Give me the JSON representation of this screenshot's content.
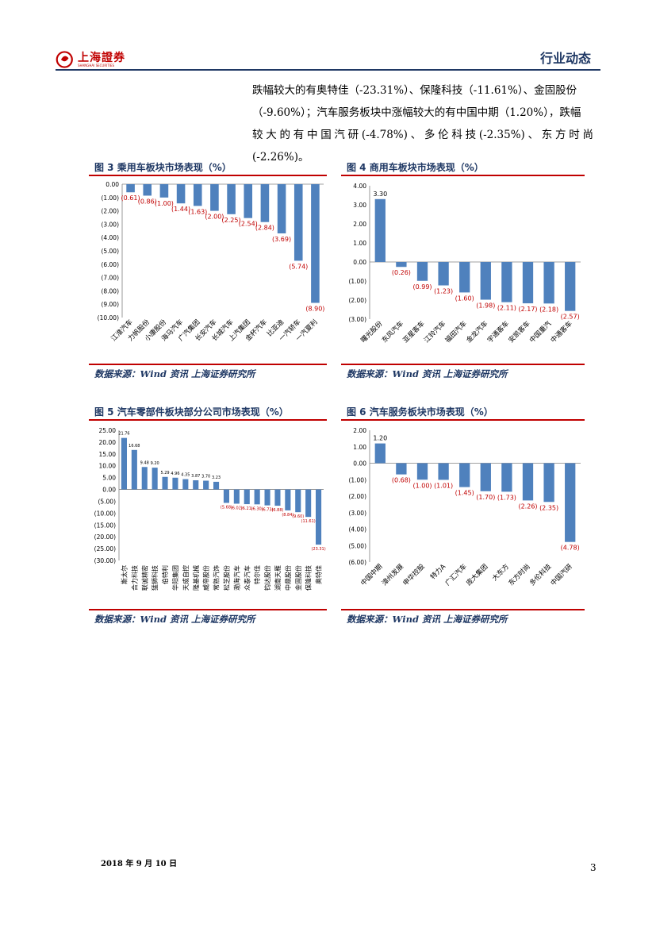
{
  "header": {
    "logo_text": "上海證券",
    "logo_sub": "SHANGHAI SECURITIES",
    "section_title": "行业动态"
  },
  "paragraph": {
    "line1": "跌幅较大的有奥特佳（-23.31%）、保隆科技（-11.61%）、金固股份",
    "line2": "（-9.60%）；汽车服务板块中涨幅较大的有中国中期（1.20%），跌幅",
    "line3": "较大的有中国汽研(-4.78%)、多伦科技(-2.35%)、东方时尚(-2.26%)。"
  },
  "figures": {
    "fig3_title": "图 3 乘用车板块市场表现（%）",
    "fig4_title": "图 4 商用车板块市场表现（%）",
    "fig5_title": "图 5 汽车零部件板块部分公司市场表现（%）",
    "fig6_title": "图 6 汽车服务板块市场表现（%）",
    "source_label": "数据来源：Wind 资讯 上海证券研究所"
  },
  "chart_data": [
    {
      "id": "fig3",
      "type": "bar",
      "title": "图 3 乘用车板块市场表现（%）",
      "categories": [
        "江淮汽车",
        "力帆股份",
        "小康股份",
        "海马汽车",
        "广汽集团",
        "长安汽车",
        "长城汽车",
        "上汽集团",
        "金杯汽车",
        "比亚迪",
        "一汽轿车",
        "一汽夏利"
      ],
      "values": [
        -0.61,
        -0.86,
        -1.0,
        -1.44,
        -1.63,
        -2.0,
        -2.25,
        -2.54,
        -2.84,
        -3.69,
        -5.74,
        -8.9
      ],
      "labels": [
        "(0.61)",
        "(0.86)",
        "(1.00)",
        "(1.44)",
        "(1.63)",
        "(2.00)",
        "(2.25)",
        "(2.54)",
        "(2.84)",
        "(3.69)",
        "(5.74)",
        "(8.90)"
      ],
      "ylim": [
        -10,
        0
      ],
      "yticks": [
        "0.00",
        "(1.00)",
        "(2.00)",
        "(3.00)",
        "(4.00)",
        "(5.00)",
        "(6.00)",
        "(7.00)",
        "(8.00)",
        "(9.00)",
        "(10.00)"
      ],
      "bar_color": "#4f81bd",
      "label_color": "#c00000"
    },
    {
      "id": "fig4",
      "type": "bar",
      "title": "图 4 商用车板块市场表现（%）",
      "categories": [
        "曙光股份",
        "东风汽车",
        "亚星客车",
        "江铃汽车",
        "福田汽车",
        "金龙汽车",
        "宇通客车",
        "安凯客车",
        "中国重汽",
        "中通客车"
      ],
      "values": [
        3.3,
        -0.26,
        -0.99,
        -1.23,
        -1.6,
        -1.98,
        -2.11,
        -2.17,
        -2.18,
        -2.57
      ],
      "labels": [
        "3.30",
        "(0.26)",
        "(0.99)",
        "(1.23)",
        "(1.60)",
        "(1.98)",
        "(2.11)",
        "(2.17)",
        "(2.18)",
        "(2.57)"
      ],
      "ylim": [
        -3,
        4
      ],
      "yticks": [
        "4.00",
        "3.00",
        "2.00",
        "1.00",
        "0.00",
        "(1.00)",
        "(2.00)",
        "(3.00)"
      ],
      "bar_color": "#4f81bd",
      "label_color": "#c00000"
    },
    {
      "id": "fig5",
      "type": "bar",
      "title": "图 5 汽车零部件板块部分公司市场表现（%）",
      "categories": [
        "斯太尔",
        "合力科技",
        "联诚精密",
        "猛狮科技",
        "伯特利",
        "华阳集团",
        "天成自控",
        "隆基机械",
        "威帝股份",
        "常熟汽饰",
        "松芝股份",
        "渤海汽车",
        "众泰汽车",
        "特尔佳",
        "钧达股份",
        "湖南天雁",
        "中鼎股份",
        "金固股份",
        "保隆科技",
        "奥特佳"
      ],
      "values": [
        21.76,
        16.68,
        9.48,
        9.2,
        5.29,
        4.96,
        4.35,
        3.87,
        3.7,
        3.23,
        -5.68,
        -6.02,
        -6.21,
        -6.3,
        -6.73,
        -6.88,
        -8.84,
        -9.6,
        -11.61,
        -23.31
      ],
      "labels": [
        "21.76",
        "16.68",
        "9.48",
        "9.20",
        "5.29",
        "4.96",
        "4.35",
        "3.87",
        "3.70",
        "3.23",
        "(5.68)",
        "(6.02)",
        "(6.21)",
        "(6.30)",
        "(6.73)",
        "(6.88)",
        "(8.84)",
        "(9.60)",
        "(11.61)",
        "(23.31)"
      ],
      "ylim": [
        -30,
        25
      ],
      "yticks": [
        "25.00",
        "20.00",
        "15.00",
        "10.00",
        "5.00",
        "0.00",
        "(5.00)",
        "(10.00)",
        "(15.00)",
        "(20.00)",
        "(25.00)",
        "(30.00)"
      ],
      "bar_color": "#4f81bd",
      "label_color": "#c00000"
    },
    {
      "id": "fig6",
      "type": "bar",
      "title": "图 6 汽车服务板块市场表现（%）",
      "categories": [
        "中国中期",
        "漳州发展",
        "申华控股",
        "特力A",
        "广汇汽车",
        "庞大集团",
        "大东方",
        "东方时尚",
        "多伦科技",
        "中国汽研"
      ],
      "values": [
        1.2,
        -0.68,
        -1.0,
        -1.01,
        -1.45,
        -1.7,
        -1.73,
        -2.26,
        -2.35,
        -4.78
      ],
      "labels": [
        "1.20",
        "(0.68)",
        "(1.00)",
        "(1.01)",
        "(1.45)",
        "(1.70)",
        "(1.73)",
        "(2.26)",
        "(2.35)",
        "(4.78)"
      ],
      "ylim": [
        -6,
        2
      ],
      "yticks": [
        "2.00",
        "1.00",
        "0.00",
        "(1.00)",
        "(2.00)",
        "(3.00)",
        "(4.00)",
        "(5.00)",
        "(6.00)"
      ],
      "bar_color": "#4f81bd",
      "label_color": "#c00000"
    }
  ],
  "footer": {
    "date": "2018 年 9 月 10 日",
    "page": "3"
  }
}
